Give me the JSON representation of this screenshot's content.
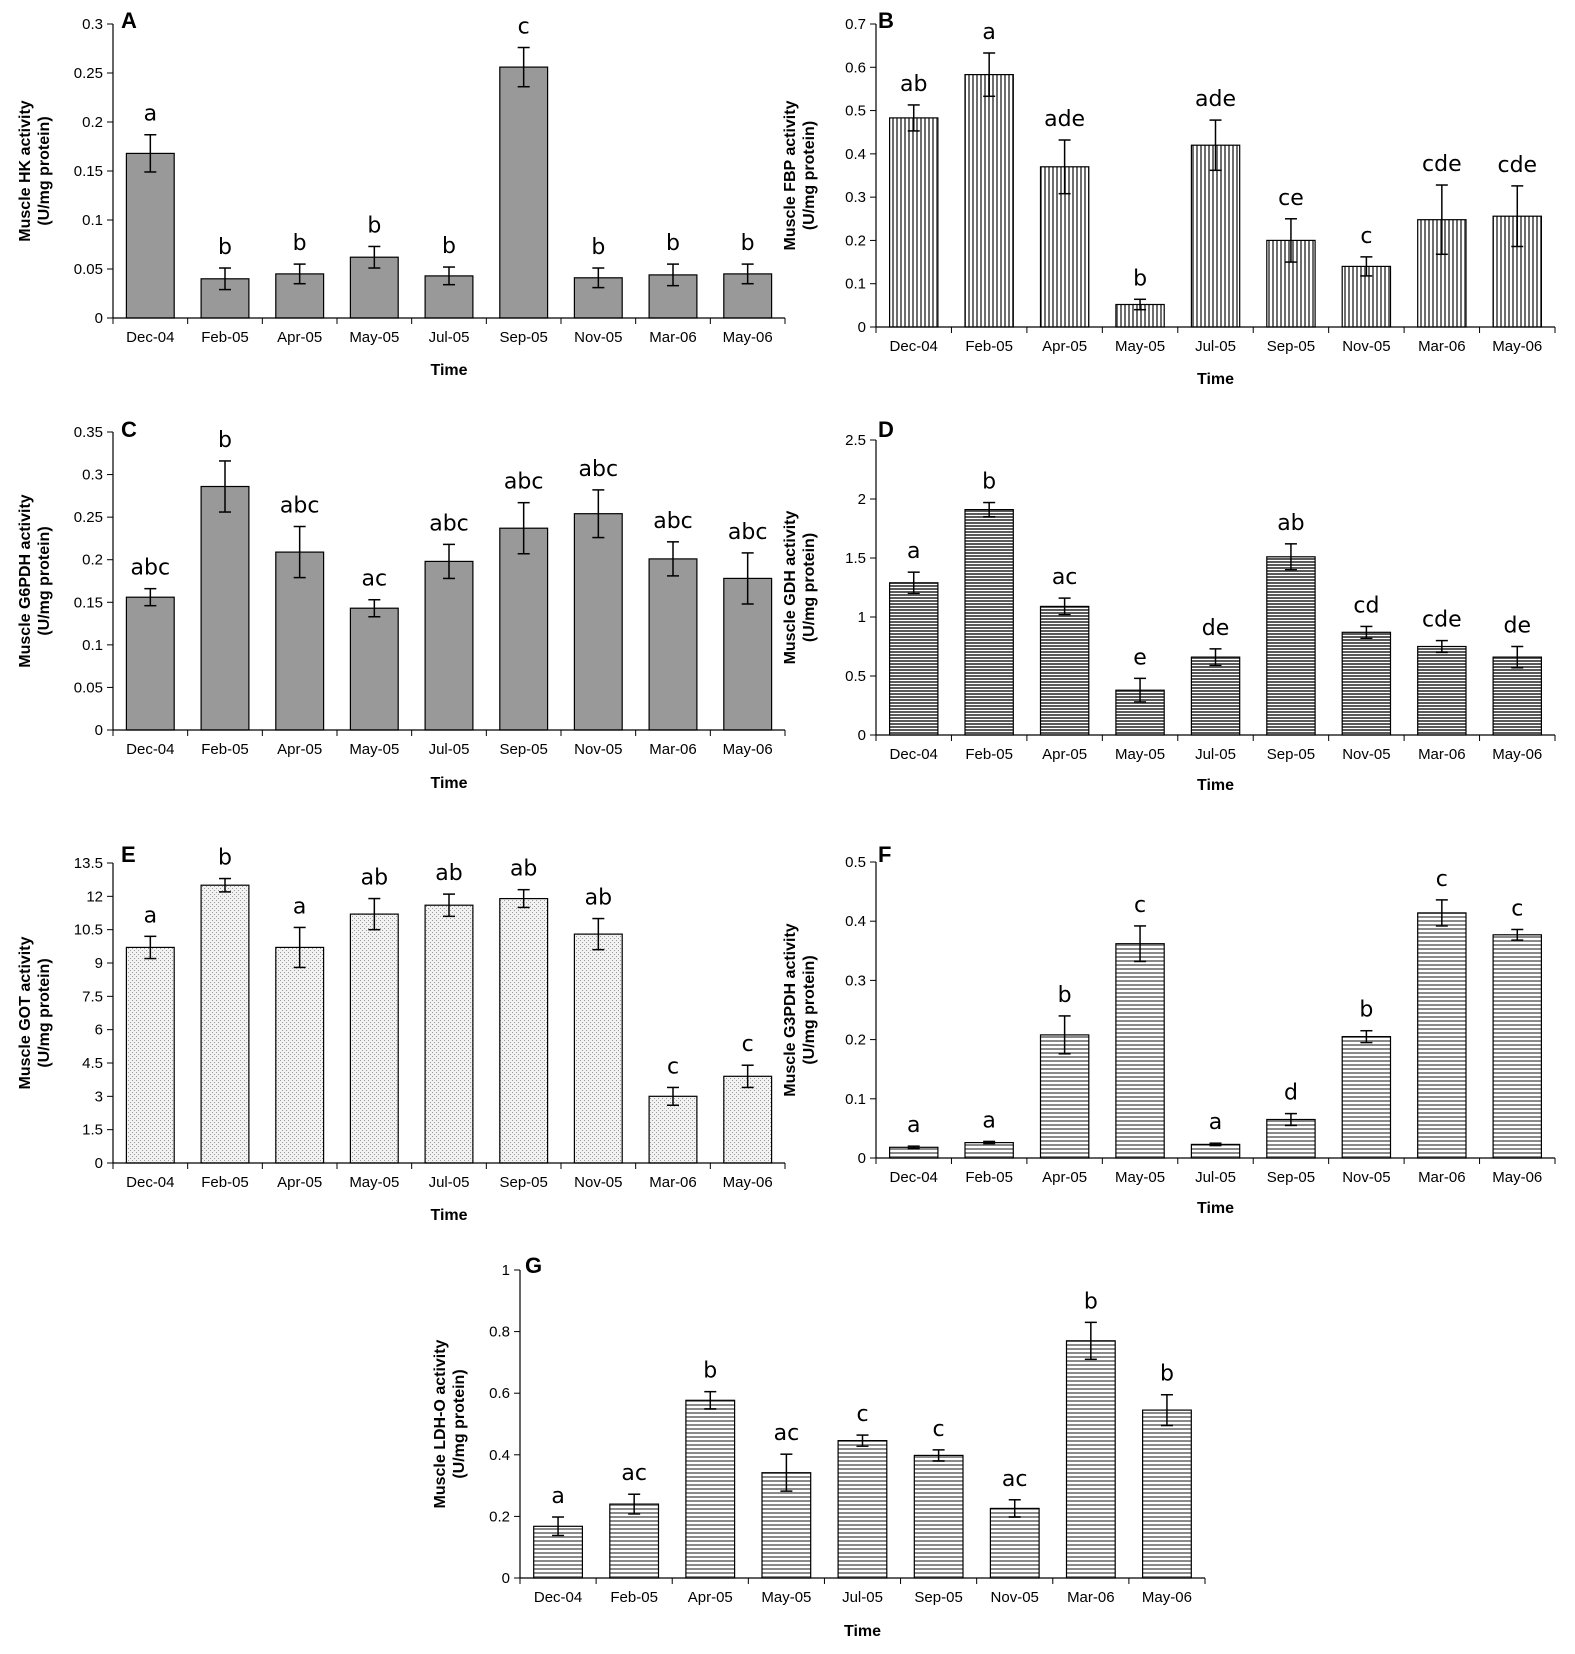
{
  "chart_data": [
    {
      "type": "bar",
      "panel": "A",
      "categories": [
        "Dec-04",
        "Feb-05",
        "Apr-05",
        "May-05",
        "Jul-05",
        "Sep-05",
        "Nov-05",
        "Mar-06",
        "May-06"
      ],
      "values": [
        0.168,
        0.04,
        0.045,
        0.062,
        0.043,
        0.256,
        0.041,
        0.044,
        0.045
      ],
      "errors": [
        0.019,
        0.011,
        0.01,
        0.011,
        0.009,
        0.02,
        0.01,
        0.011,
        0.01
      ],
      "significance": [
        "a",
        "b",
        "b",
        "b",
        "b",
        "c",
        "b",
        "b",
        "b"
      ],
      "xlabel": "Time",
      "ylabel": [
        "Muscle HK activity",
        "(U/mg protein)"
      ],
      "ylim": [
        0,
        0.3
      ],
      "yticks": [
        "0",
        "0.05",
        "0.1",
        "0.15",
        "0.2",
        "0.25",
        "0.3"
      ],
      "fill": "#999999",
      "pattern": "solid",
      "grid": false
    },
    {
      "type": "bar",
      "panel": "B",
      "categories": [
        "Dec-04",
        "Feb-05",
        "Apr-05",
        "May-05",
        "Jul-05",
        "Sep-05",
        "Nov-05",
        "Mar-06",
        "May-06"
      ],
      "values": [
        0.483,
        0.583,
        0.37,
        0.052,
        0.42,
        0.2,
        0.14,
        0.248,
        0.256
      ],
      "errors": [
        0.03,
        0.05,
        0.062,
        0.012,
        0.058,
        0.05,
        0.022,
        0.08,
        0.07
      ],
      "significance": [
        "ab",
        "a",
        "ade",
        "b",
        "ade",
        "ce",
        "c",
        "cde",
        "cde"
      ],
      "xlabel": "Time",
      "ylabel": [
        "Muscle FBP activity",
        "(U/mg protein)"
      ],
      "ylim": [
        0,
        0.7
      ],
      "yticks": [
        "0",
        "0.1",
        "0.2",
        "0.3",
        "0.4",
        "0.5",
        "0.6",
        "0.7"
      ],
      "fill": "#aaaaaa",
      "pattern": "vertical",
      "grid": false
    },
    {
      "type": "bar",
      "panel": "C",
      "categories": [
        "Dec-04",
        "Feb-05",
        "Apr-05",
        "May-05",
        "Jul-05",
        "Sep-05",
        "Nov-05",
        "Mar-06",
        "May-06"
      ],
      "values": [
        0.156,
        0.286,
        0.209,
        0.143,
        0.198,
        0.237,
        0.254,
        0.201,
        0.178
      ],
      "errors": [
        0.01,
        0.03,
        0.03,
        0.01,
        0.02,
        0.03,
        0.028,
        0.02,
        0.03
      ],
      "significance": [
        "abc",
        "b",
        "abc",
        "ac",
        "abc",
        "abc",
        "abc",
        "abc",
        "abc"
      ],
      "xlabel": "Time",
      "ylabel": [
        "Muscle G6PDH activity",
        "(U/mg protein)"
      ],
      "ylim": [
        0,
        0.35
      ],
      "yticks": [
        "0",
        "0.05",
        "0.1",
        "0.15",
        "0.2",
        "0.25",
        "0.3",
        "0.35"
      ],
      "fill": "#999999",
      "pattern": "solid",
      "grid": false
    },
    {
      "type": "bar",
      "panel": "D",
      "categories": [
        "Dec-04",
        "Feb-05",
        "Apr-05",
        "May-05",
        "Jul-05",
        "Sep-05",
        "Nov-05",
        "Mar-06",
        "May-06"
      ],
      "values": [
        1.29,
        1.91,
        1.09,
        0.38,
        0.66,
        1.51,
        0.87,
        0.75,
        0.66
      ],
      "errors": [
        0.09,
        0.06,
        0.07,
        0.1,
        0.07,
        0.11,
        0.05,
        0.05,
        0.09
      ],
      "significance": [
        "a",
        "b",
        "ac",
        "e",
        "de",
        "ab",
        "cd",
        "cde",
        "de"
      ],
      "xlabel": "Time",
      "ylabel": [
        "Muscle GDH activity",
        "(U/mg protein)"
      ],
      "ylim": [
        0,
        2.5
      ],
      "yticks": [
        "0",
        "0.5",
        "1",
        "1.5",
        "2",
        "2.5"
      ],
      "fill": "#888888",
      "pattern": "horizontal",
      "grid": false
    },
    {
      "type": "bar",
      "panel": "E",
      "categories": [
        "Dec-04",
        "Feb-05",
        "Apr-05",
        "May-05",
        "Jul-05",
        "Sep-05",
        "Nov-05",
        "Mar-06",
        "May-06"
      ],
      "values": [
        9.7,
        12.5,
        9.7,
        11.2,
        11.6,
        11.9,
        10.3,
        3.0,
        3.9
      ],
      "errors": [
        0.5,
        0.3,
        0.9,
        0.7,
        0.5,
        0.4,
        0.7,
        0.4,
        0.5
      ],
      "significance": [
        "a",
        "b",
        "a",
        "ab",
        "ab",
        "ab",
        "ab",
        "c",
        "c"
      ],
      "xlabel": "Time",
      "ylabel": [
        "Muscle GOT activity",
        "(U/mg protein)"
      ],
      "ylim": [
        0,
        13.5
      ],
      "yticks": [
        "0",
        "1.5",
        "3",
        "4.5",
        "6",
        "7.5",
        "9",
        "10.5",
        "12",
        "13.5"
      ],
      "fill": "#dddddd",
      "pattern": "dotted",
      "grid": false
    },
    {
      "type": "bar",
      "panel": "F",
      "categories": [
        "Dec-04",
        "Feb-05",
        "Apr-05",
        "May-05",
        "Jul-05",
        "Sep-05",
        "Nov-05",
        "Mar-06",
        "May-06"
      ],
      "values": [
        0.018,
        0.026,
        0.208,
        0.362,
        0.023,
        0.065,
        0.205,
        0.414,
        0.377
      ],
      "errors": [
        0.002,
        0.002,
        0.032,
        0.03,
        0.002,
        0.01,
        0.01,
        0.022,
        0.009
      ],
      "significance": [
        "a",
        "a",
        "b",
        "c",
        "a",
        "d",
        "b",
        "c",
        "c"
      ],
      "xlabel": "Time",
      "ylabel": [
        "Muscle G3PDH activity",
        "(U/mg protein)"
      ],
      "ylim": [
        0,
        0.5
      ],
      "yticks": [
        "0",
        "0.1",
        "0.2",
        "0.3",
        "0.4",
        "0.5"
      ],
      "fill": "#bbbbbb",
      "pattern": "horizontal-light",
      "grid": false
    },
    {
      "type": "bar",
      "panel": "G",
      "categories": [
        "Dec-04",
        "Feb-05",
        "Apr-05",
        "May-05",
        "Jul-05",
        "Sep-05",
        "Nov-05",
        "Mar-06",
        "May-06"
      ],
      "values": [
        0.168,
        0.24,
        0.577,
        0.342,
        0.446,
        0.398,
        0.226,
        0.77,
        0.545
      ],
      "errors": [
        0.03,
        0.032,
        0.028,
        0.06,
        0.018,
        0.018,
        0.028,
        0.06,
        0.05
      ],
      "significance": [
        "a",
        "ac",
        "b",
        "ac",
        "c",
        "c",
        "ac",
        "b",
        "b"
      ],
      "xlabel": "Time",
      "ylabel": [
        "Muscle LDH-O activity",
        "(U/mg protein)"
      ],
      "ylim": [
        0,
        1
      ],
      "yticks": [
        "0",
        "0.2",
        "0.4",
        "0.6",
        "0.8",
        "1"
      ],
      "fill": "#bbbbbb",
      "pattern": "horizontal-light",
      "grid": false
    }
  ]
}
